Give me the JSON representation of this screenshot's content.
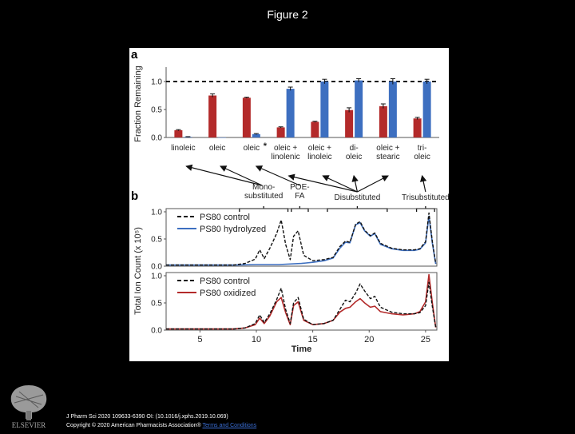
{
  "page": {
    "title": "Figure 2",
    "citation": "J Pharm Sci 2020 109633-6390 OI: (10.1016/j.xphs.2019.10.069)",
    "copyright": "Copyright © 2020 American Pharmacists Association®",
    "terms_link": "Terms and Conditions",
    "publisher": "ELSEVIER"
  },
  "colors": {
    "red": "#b32a2a",
    "blue": "#3d6fc0",
    "black": "#111111"
  },
  "chart_data": [
    {
      "type": "bar",
      "panel_label": "a",
      "categories": [
        "linoleic",
        "oleic",
        "oleic",
        "oleic + linolenic",
        "oleic + linoleic",
        "di-oleic",
        "oleic + stearic",
        "tri-oleic"
      ],
      "category_lines": [
        [
          "linoleic"
        ],
        [
          "oleic"
        ],
        [
          "oleic"
        ],
        [
          "oleic +",
          "linolenic"
        ],
        [
          "oleic +",
          "linoleic"
        ],
        [
          "di-",
          "oleic"
        ],
        [
          "oleic +",
          "stearic"
        ],
        [
          "tri-",
          "oleic"
        ]
      ],
      "asterisk_index": 2,
      "asterisk": "*",
      "ylabel": "Fraction Remaining",
      "ylim": [
        0,
        1.2
      ],
      "yticks": [
        "0.0",
        "0.5",
        "1.0"
      ],
      "ytick_values": [
        0,
        0.5,
        1.0
      ],
      "reference_line": 1.0,
      "series": [
        {
          "values": [
            0.13,
            0.75,
            0.71,
            0.18,
            0.28,
            0.49,
            0.56,
            0.34
          ],
          "errors": [
            0.01,
            0.03,
            0.01,
            0.01,
            0.01,
            0.04,
            0.04,
            0.02
          ]
        },
        {
          "values": [
            0.01,
            0.0,
            0.06,
            0.87,
            1.0,
            1.02,
            1.0,
            1.0
          ],
          "errors": [
            0.005,
            0,
            0.01,
            0.03,
            0.04,
            0.03,
            0.05,
            0.04
          ]
        }
      ]
    },
    {
      "type": "line",
      "panel_label": "b",
      "ylabel": "Total Ion Count (x 10⁵)",
      "xlabel": "Time",
      "xlim": [
        2,
        26
      ],
      "xticks": [
        5,
        10,
        15,
        20,
        25
      ],
      "group_labels": {
        "mono": [
          "Mono-",
          "substituted"
        ],
        "poe": [
          "POE-",
          "FA"
        ],
        "di": [
          "Disubstituted"
        ],
        "tri": [
          "Trisubstituted"
        ]
      },
      "group_ranges": [
        [
          8.5,
          12.8
        ],
        [
          13.1,
          14.6
        ],
        [
          16.3,
          21.6
        ],
        [
          24.2,
          25.8
        ]
      ],
      "panels": [
        {
          "ylim": [
            0,
            1.0
          ],
          "yticks": [
            "0.0",
            "0.5",
            "1.0"
          ],
          "legend": [
            "PS80 control",
            "PS80 hydrolyzed"
          ],
          "series": [
            {
              "name": "PS80 control",
              "style": "dashed",
              "x": [
                2,
                8,
                9,
                9.9,
                10.3,
                10.7,
                11.2,
                11.8,
                12.2,
                12.6,
                13.0,
                13.3,
                13.7,
                14.2,
                15,
                16,
                16.8,
                17.4,
                17.9,
                18.3,
                18.8,
                19.2,
                19.6,
                20.1,
                20.5,
                21,
                22,
                23,
                24,
                24.5,
                25.0,
                25.3,
                25.6,
                25.9
              ],
              "y": [
                0.02,
                0.02,
                0.05,
                0.13,
                0.3,
                0.14,
                0.33,
                0.6,
                0.85,
                0.4,
                0.12,
                0.55,
                0.65,
                0.2,
                0.1,
                0.12,
                0.16,
                0.36,
                0.46,
                0.44,
                0.77,
                0.82,
                0.66,
                0.56,
                0.61,
                0.42,
                0.33,
                0.3,
                0.3,
                0.32,
                0.45,
                0.98,
                0.45,
                0.05
              ]
            },
            {
              "name": "PS80 hydrolyzed",
              "style": "solid",
              "x": [
                2,
                8,
                10,
                12,
                14,
                15,
                16,
                16.8,
                17.4,
                17.9,
                18.3,
                18.8,
                19.2,
                19.6,
                20.1,
                20.5,
                21,
                22,
                23,
                24,
                24.5,
                25.0,
                25.3,
                25.6,
                25.9
              ],
              "y": [
                0.02,
                0.02,
                0.03,
                0.03,
                0.05,
                0.07,
                0.1,
                0.15,
                0.33,
                0.44,
                0.43,
                0.76,
                0.8,
                0.65,
                0.55,
                0.6,
                0.4,
                0.32,
                0.29,
                0.29,
                0.31,
                0.43,
                0.92,
                0.42,
                0.04
              ]
            }
          ]
        },
        {
          "ylim": [
            0,
            1.0
          ],
          "yticks": [
            "0.0",
            "0.5",
            "1.0"
          ],
          "legend": [
            "PS80 control",
            "PS80 oxidized"
          ],
          "series": [
            {
              "name": "PS80 control",
              "style": "dashed",
              "x": [
                2,
                8,
                9,
                9.9,
                10.3,
                10.7,
                11.2,
                11.8,
                12.2,
                12.6,
                13.0,
                13.3,
                13.7,
                14.2,
                15,
                16,
                16.8,
                17.4,
                17.9,
                18.3,
                18.8,
                19.2,
                19.6,
                20.1,
                20.5,
                21,
                22,
                23,
                24,
                24.5,
                25.0,
                25.3,
                25.6,
                25.9
              ],
              "y": [
                0.02,
                0.02,
                0.04,
                0.12,
                0.28,
                0.14,
                0.3,
                0.56,
                0.77,
                0.38,
                0.12,
                0.5,
                0.6,
                0.2,
                0.1,
                0.12,
                0.18,
                0.38,
                0.55,
                0.52,
                0.68,
                0.85,
                0.72,
                0.58,
                0.62,
                0.42,
                0.33,
                0.3,
                0.3,
                0.32,
                0.45,
                0.88,
                0.43,
                0.05
              ]
            },
            {
              "name": "PS80 oxidized",
              "style": "solid",
              "x": [
                2,
                8,
                9,
                9.9,
                10.3,
                10.7,
                11.2,
                11.8,
                12.2,
                12.6,
                13.0,
                13.3,
                13.7,
                14.2,
                15,
                16,
                16.8,
                17.4,
                17.9,
                18.3,
                18.8,
                19.2,
                19.6,
                20.1,
                20.5,
                21,
                22,
                23,
                24,
                24.5,
                25.0,
                25.3,
                25.6,
                25.9
              ],
              "y": [
                0.02,
                0.02,
                0.04,
                0.1,
                0.22,
                0.12,
                0.26,
                0.52,
                0.6,
                0.32,
                0.1,
                0.45,
                0.52,
                0.18,
                0.1,
                0.12,
                0.18,
                0.33,
                0.4,
                0.42,
                0.52,
                0.58,
                0.5,
                0.42,
                0.44,
                0.34,
                0.3,
                0.28,
                0.3,
                0.34,
                0.52,
                1.02,
                0.5,
                0.05
              ]
            }
          ]
        }
      ]
    }
  ]
}
